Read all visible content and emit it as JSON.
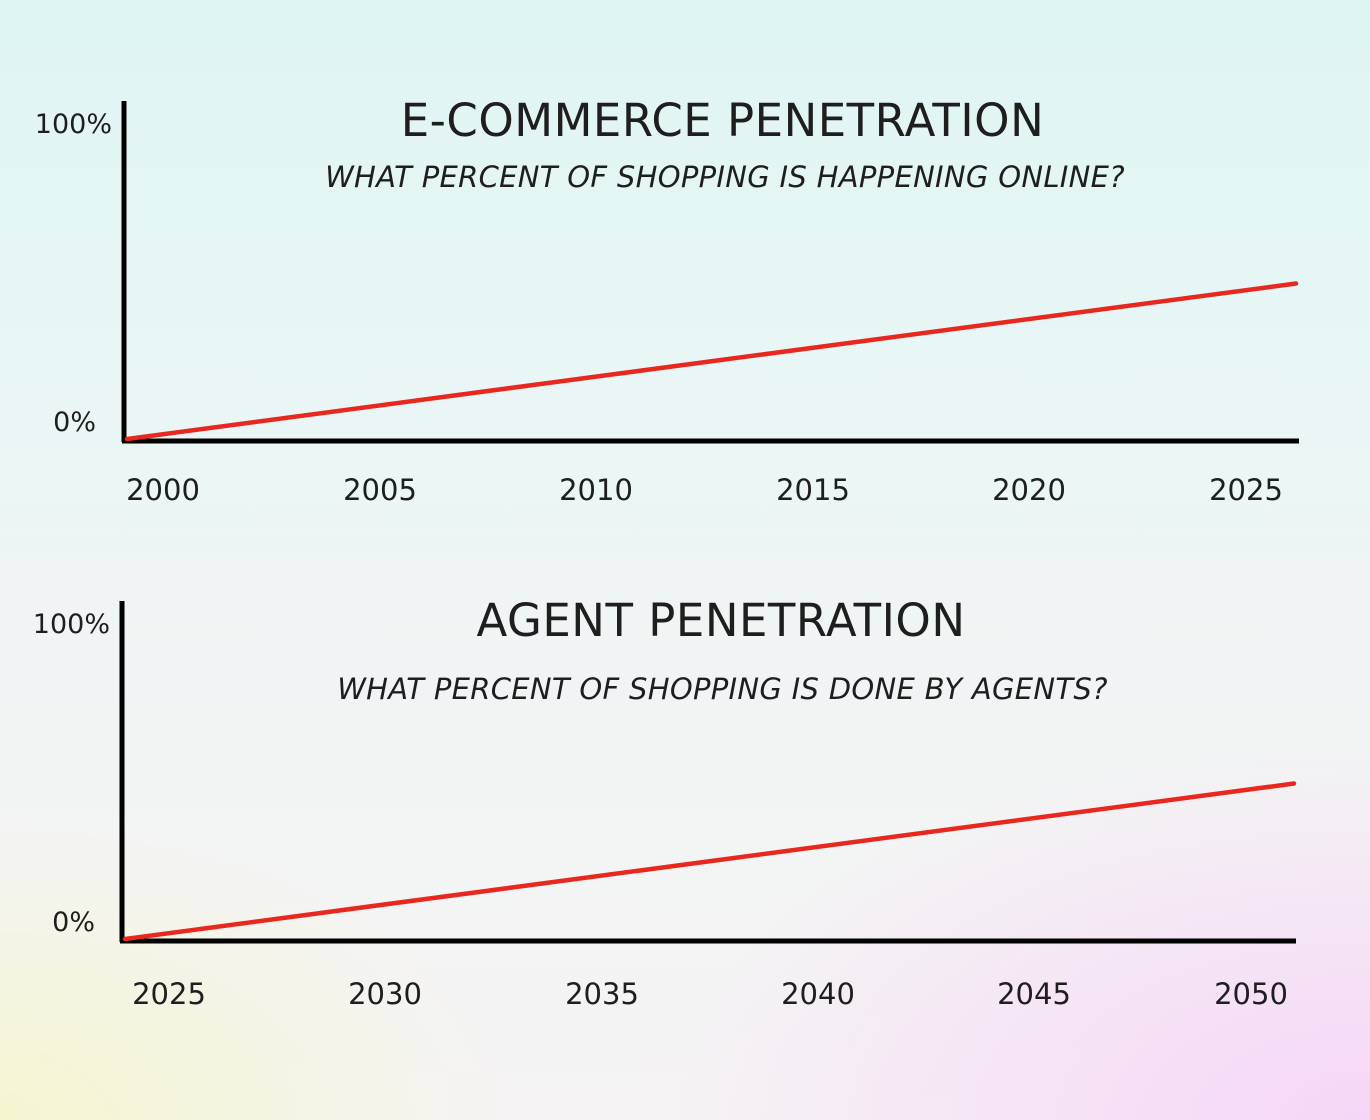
{
  "chart_data": [
    {
      "type": "line",
      "title": "E-COMMERCE PENETRATION",
      "subtitle": "WHAT PERCENT OF SHOPPING IS HAPPENING ONLINE?",
      "y_tick_labels": [
        "100%",
        "0%"
      ],
      "ylim": [
        0,
        100
      ],
      "x_tick_labels": [
        "2000",
        "2005",
        "2010",
        "2015",
        "2020",
        "2025"
      ],
      "xlim": [
        2000,
        2026
      ],
      "series": [
        {
          "x": [
            2000,
            2026
          ],
          "y": [
            0,
            46
          ]
        }
      ],
      "line_color": "#e8281e",
      "grid": false
    },
    {
      "type": "line",
      "title": "AGENT PENETRATION",
      "subtitle": "WHAT PERCENT OF SHOPPING IS DONE BY AGENTS?",
      "y_tick_labels": [
        "100%",
        "0%"
      ],
      "ylim": [
        0,
        100
      ],
      "x_tick_labels": [
        "2025",
        "2030",
        "2035",
        "2040",
        "2045",
        "2050"
      ],
      "xlim": [
        2024,
        2051
      ],
      "series": [
        {
          "x": [
            2024,
            2051
          ],
          "y": [
            0,
            46
          ]
        }
      ],
      "line_color": "#e8281e",
      "grid": false
    }
  ]
}
